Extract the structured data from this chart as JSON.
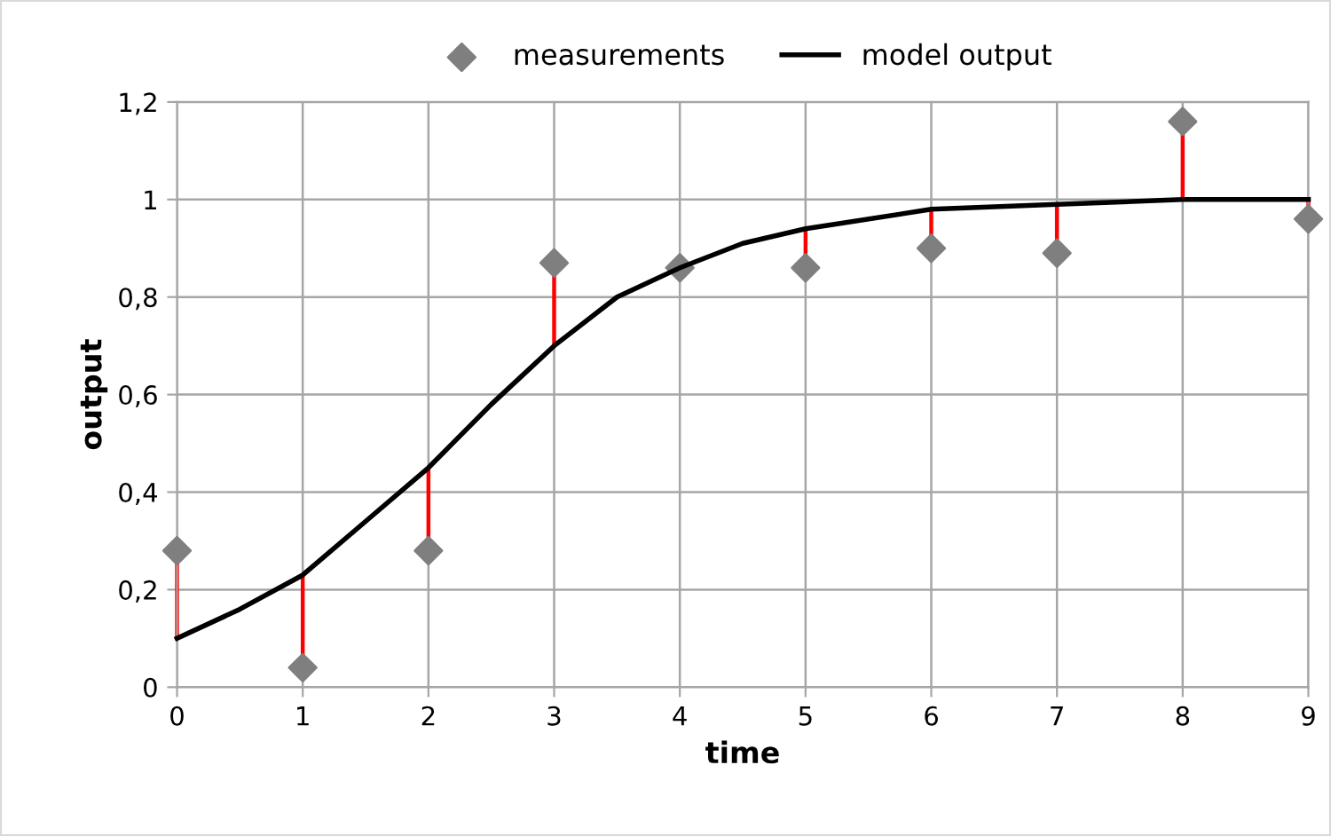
{
  "chart_data": {
    "type": "scatter",
    "xlabel": "time",
    "ylabel": "output",
    "xlim": [
      0,
      9
    ],
    "xticks": [
      0,
      1,
      2,
      3,
      4,
      5,
      6,
      7,
      8,
      9
    ],
    "ylim": [
      0,
      1.2
    ],
    "yticks": [
      0,
      {
        "value": 0.2,
        "label": "0,2"
      },
      {
        "value": 0.4,
        "label": "0,4"
      },
      {
        "value": 0.6,
        "label": "0,6"
      },
      {
        "value": 0.8,
        "label": "0,8"
      },
      1,
      {
        "value": 1.2,
        "label": "1,2"
      }
    ],
    "grid": true,
    "legend": "top",
    "series": [
      {
        "name": "measurements",
        "marker": "diamond",
        "color": "#7f7f7f",
        "x": [
          0,
          1,
          2,
          3,
          4,
          5,
          6,
          7,
          8,
          9
        ],
        "values": [
          0.28,
          0.04,
          0.28,
          0.87,
          0.86,
          0.86,
          0.9,
          0.89,
          1.16,
          0.96
        ],
        "errors": [
          [
            0.1,
            0.28
          ],
          [
            0.04,
            0.23
          ],
          [
            0.28,
            0.45
          ],
          [
            0.7,
            0.87
          ],
          null,
          [
            0.86,
            0.94
          ],
          [
            0.9,
            0.98
          ],
          [
            0.89,
            0.99
          ],
          [
            1.0,
            1.16
          ],
          [
            0.96,
            1.0
          ]
        ]
      },
      {
        "name": "model output",
        "type": "line",
        "marker": "none",
        "line_style": "solid",
        "color": "#000000",
        "x": [
          0,
          0.5,
          1,
          1.5,
          2,
          2.5,
          3,
          3.5,
          4,
          4.5,
          5,
          6,
          7,
          8,
          9
        ],
        "values": [
          0.1,
          0.16,
          0.23,
          0.34,
          0.45,
          0.58,
          0.7,
          0.8,
          0.86,
          0.91,
          0.94,
          0.98,
          0.99,
          1.0,
          1.0
        ]
      }
    ]
  }
}
